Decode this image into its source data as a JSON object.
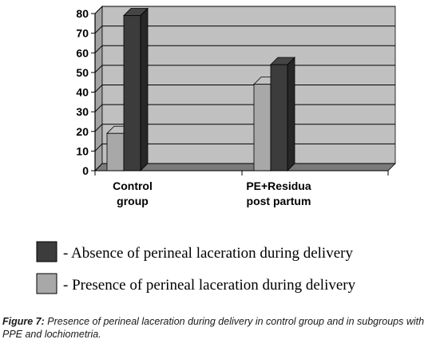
{
  "chart_data": {
    "type": "bar",
    "style": "3d-column",
    "categories": [
      [
        "Control",
        "group"
      ],
      [
        "PE+Residua",
        "post partum"
      ]
    ],
    "series": [
      {
        "name": "- Presence of perineal laceration during delivery",
        "color": "#a8a8a8",
        "values": [
          19,
          44
        ]
      },
      {
        "name": "- Absence of perineal laceration during delivery",
        "color": "#3c3c3c",
        "values": [
          79,
          54
        ]
      }
    ],
    "ylim": [
      0,
      80
    ],
    "yticks": [
      0,
      10,
      20,
      30,
      40,
      50,
      60,
      70,
      80
    ],
    "grid": true,
    "plot_background": "#c0c0c0",
    "legend_order": [
      1,
      0
    ]
  },
  "caption": {
    "figure_label": "Figure 7:",
    "text": "Presence of perineal laceration during delivery in control group and in subgroups with PPE and lochiometria."
  }
}
